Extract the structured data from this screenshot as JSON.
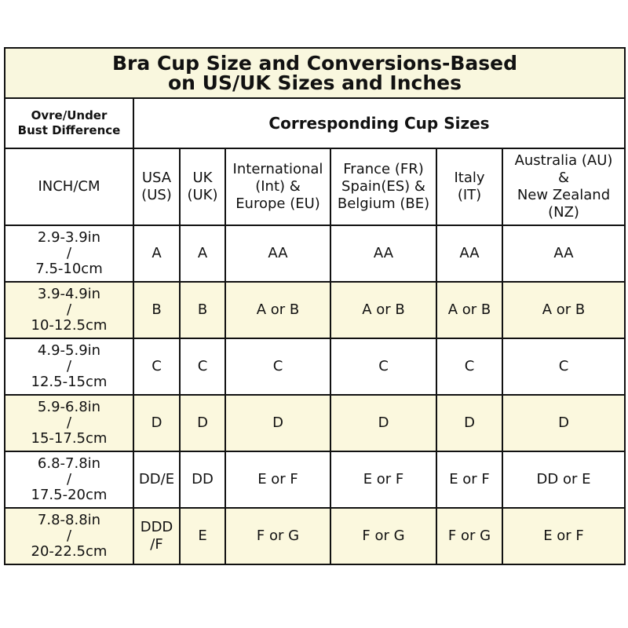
{
  "title_line1": "Bra Cup Size and Conversions-Based",
  "title_line2": "on US/UK Sizes and Inches",
  "left_header_line1": "Ovre/Under",
  "left_header_line2": "Bust Difference",
  "right_header": "Corresponding Cup Sizes",
  "columns": [
    [
      "INCH/CM"
    ],
    [
      "USA",
      "(US)"
    ],
    [
      "UK",
      "(UK)"
    ],
    [
      "International",
      "(Int) &",
      "Europe (EU)"
    ],
    [
      "France (FR)",
      "Spain(ES) &",
      "Belgium (BE)"
    ],
    [
      "Italy",
      "(IT)"
    ],
    [
      "Australia (AU)",
      "&",
      "New Zealand",
      "(NZ)"
    ]
  ],
  "rows": [
    {
      "range": [
        "2.9-3.9in",
        "/",
        "7.5-10cm"
      ],
      "us": "A",
      "uk": "A",
      "eu": "AA",
      "fr": "AA",
      "it": "AA",
      "au": "AA"
    },
    {
      "range": [
        "3.9-4.9in",
        "/",
        "10-12.5cm"
      ],
      "us": "B",
      "uk": "B",
      "eu": "A or B",
      "fr": "A or B",
      "it": "A or B",
      "au": "A or B"
    },
    {
      "range": [
        "4.9-5.9in",
        "/",
        "12.5-15cm"
      ],
      "us": "C",
      "uk": "C",
      "eu": "C",
      "fr": "C",
      "it": "C",
      "au": "C"
    },
    {
      "range": [
        "5.9-6.8in",
        "/",
        "15-17.5cm"
      ],
      "us": "D",
      "uk": "D",
      "eu": "D",
      "fr": "D",
      "it": "D",
      "au": "D"
    },
    {
      "range": [
        "6.8-7.8in",
        "/",
        "17.5-20cm"
      ],
      "us": "DD/E",
      "uk": "DD",
      "eu": "E or F",
      "fr": "E or F",
      "it": "E or F",
      "au": "DD or E"
    },
    {
      "range": [
        "7.8-8.8in",
        "/",
        "20-22.5cm"
      ],
      "us": "DDD\n/F",
      "uk": "E",
      "eu": "F or G",
      "fr": "F or G",
      "it": "F or G",
      "au": "E or F"
    }
  ],
  "colors": {
    "title_bg": "#f9f7de",
    "alt_row_bg": "#fbf8de",
    "border": "#111111"
  }
}
